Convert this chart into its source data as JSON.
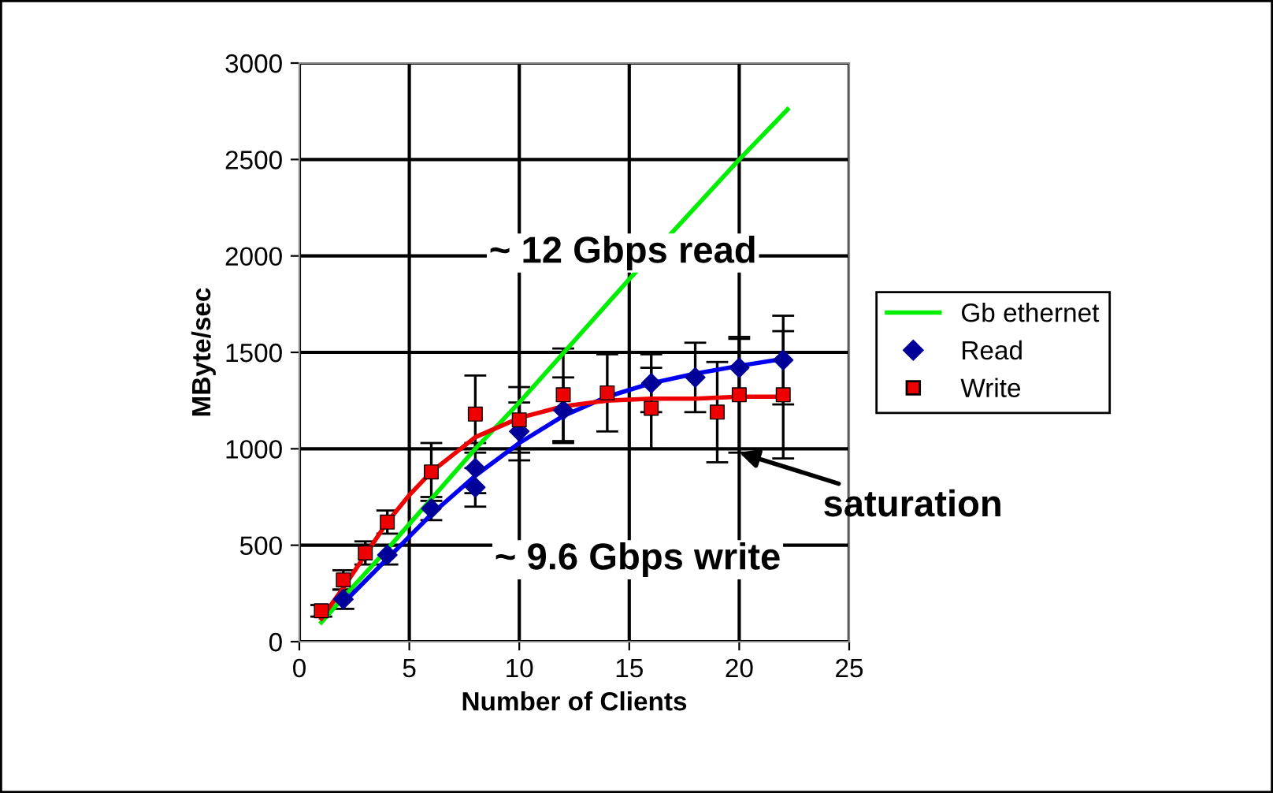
{
  "chart_data": {
    "type": "scatter",
    "xlabel": "Number of Clients",
    "ylabel": "MByte/sec",
    "xlim": [
      0,
      25
    ],
    "xticks": [
      0,
      5,
      10,
      15,
      20,
      25
    ],
    "ylim": [
      0,
      3000
    ],
    "yticks": [
      0,
      500,
      1000,
      1500,
      2000,
      2500,
      3000
    ],
    "grid": true,
    "legend": "right",
    "series": [
      {
        "name": "Gb ethernet",
        "type": "line",
        "color": "#00ee00",
        "marker": "none",
        "x": [
          1,
          2,
          4,
          8,
          10,
          15,
          20,
          22.2
        ],
        "values": [
          100,
          230,
          480,
          1000,
          1240,
          1880,
          2500,
          2760
        ]
      },
      {
        "name": "Read",
        "color": "#000099",
        "marker": "diamond",
        "x": [
          2,
          4,
          6,
          8,
          8,
          10,
          12,
          14,
          16,
          18,
          20,
          22
        ],
        "values": [
          220,
          450,
          690,
          900,
          800,
          1090,
          1200,
          null,
          1340,
          1370,
          1420,
          1460
        ],
        "errors": [
          50,
          50,
          60,
          130,
          100,
          150,
          170,
          null,
          150,
          180,
          150,
          230
        ]
      },
      {
        "name": "Write",
        "color": "#ee0000",
        "marker": "square",
        "x": [
          1,
          2,
          3,
          4,
          6,
          8,
          10,
          12,
          14,
          16,
          19,
          20,
          22
        ],
        "values": [
          160,
          320,
          460,
          620,
          880,
          1180,
          1150,
          1280,
          1290,
          1210,
          1190,
          1280,
          1280
        ],
        "errors": [
          30,
          50,
          60,
          60,
          150,
          200,
          170,
          240,
          200,
          210,
          260,
          300,
          330
        ]
      },
      {
        "type": "line",
        "color": "#0000ee",
        "marker": "none",
        "x": [
          2,
          4,
          6,
          8,
          10,
          12,
          14,
          16,
          18,
          20,
          22.2
        ],
        "values": [
          200,
          430,
          660,
          860,
          1030,
          1170,
          1270,
          1340,
          1390,
          1430,
          1470
        ]
      },
      {
        "type": "line",
        "color": "#ee0000",
        "marker": "none",
        "x": [
          1,
          2,
          3,
          4,
          5,
          6,
          8,
          10,
          12,
          14,
          16,
          18,
          20,
          22
        ],
        "values": [
          120,
          280,
          450,
          620,
          760,
          880,
          1060,
          1160,
          1220,
          1250,
          1260,
          1260,
          1270,
          1270
        ]
      }
    ],
    "annotations": [
      "~ 12 Gbps read",
      "~ 9.6 Gbps write",
      {
        "text": "saturation",
        "x": 20,
        "y": 980
      }
    ]
  }
}
